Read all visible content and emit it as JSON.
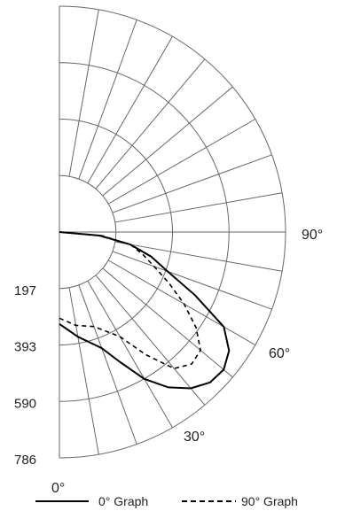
{
  "chart_data": {
    "type": "polar",
    "title": "",
    "radial_ticks": [
      "197",
      "393",
      "590",
      "786"
    ],
    "radial_values": [
      197,
      393,
      590,
      786
    ],
    "radial_max": 786,
    "angle_labels": [
      {
        "angle": 0,
        "text": "0°"
      },
      {
        "angle": 30,
        "text": "30°"
      },
      {
        "angle": 60,
        "text": "60°"
      },
      {
        "angle": 90,
        "text": "90°"
      }
    ],
    "angle_step": 10,
    "series": [
      {
        "name": "0° Graph",
        "style": "solid",
        "angles": [
          0,
          10,
          20,
          25,
          30,
          35,
          40,
          45,
          50,
          55,
          60,
          65,
          70,
          75,
          80,
          85,
          90
        ],
        "values": [
          320,
          370,
          430,
          500,
          590,
          660,
          710,
          740,
          745,
          720,
          660,
          520,
          400,
          330,
          250,
          140,
          0
        ]
      },
      {
        "name": "90° Graph",
        "style": "dashed",
        "angles": [
          0,
          10,
          20,
          30,
          35,
          40,
          45,
          50,
          55,
          60,
          65,
          70,
          75,
          80,
          85,
          90
        ],
        "values": [
          300,
          330,
          350,
          420,
          520,
          620,
          650,
          640,
          580,
          500,
          420,
          350,
          300,
          250,
          150,
          0
        ]
      }
    ]
  },
  "legend": {
    "solid_label": "0° Graph",
    "dashed_label": "90° Graph"
  }
}
